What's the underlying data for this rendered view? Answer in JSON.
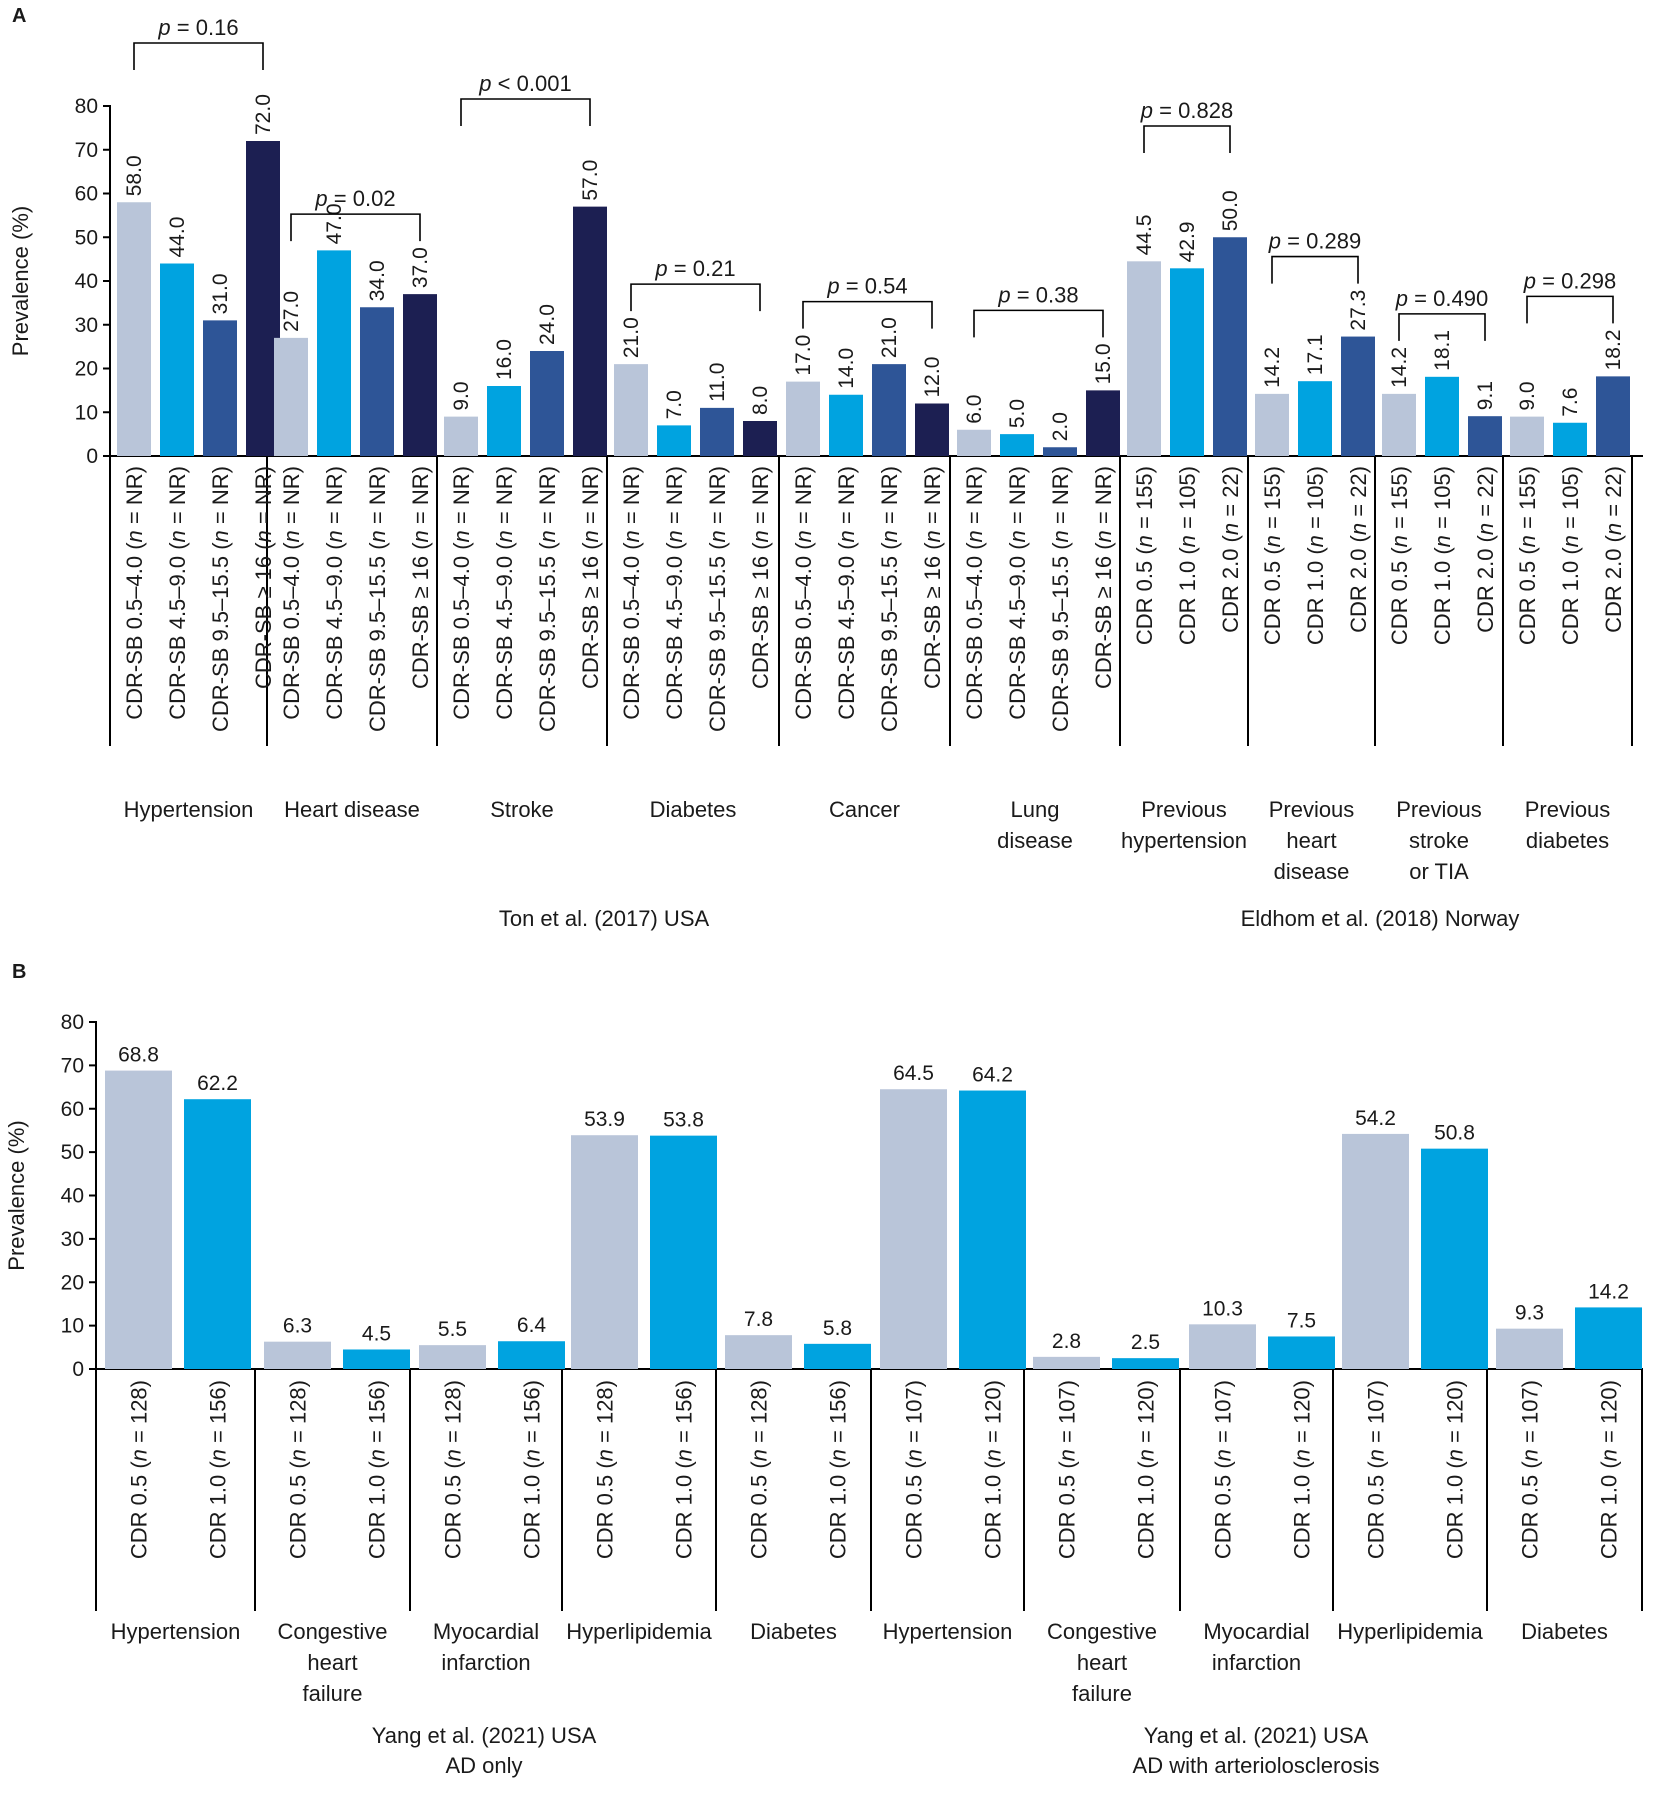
{
  "colors": {
    "s1": "#b9c5d9",
    "s2": "#00a3e0",
    "s3": "#2e5597",
    "s4": "#1c1f52"
  },
  "chart_data": [
    {
      "panel": "A",
      "type": "bar",
      "ylabel": "Prevalence (%)",
      "ylim": [
        0,
        80
      ],
      "yticks": [
        0,
        10,
        20,
        30,
        40,
        50,
        60,
        70,
        80
      ],
      "groups": [
        {
          "name": [
            "Hypertension"
          ],
          "study": 0,
          "p": [
            "p",
            " = 0.16"
          ],
          "bars": [
            {
              "label": "CDR-SB 0.5–4.0 (",
              "n": " = NR)",
              "value": 58.0,
              "s": 1
            },
            {
              "label": "CDR-SB 4.5–9.0 (",
              "n": " = NR)",
              "value": 44.0,
              "s": 2
            },
            {
              "label": "CDR-SB 9.5–15.5 (",
              "n": " = NR)",
              "value": 31.0,
              "s": 3
            },
            {
              "label": "CDR-SB ≥ 16 (",
              "n": " = NR)",
              "value": 72.0,
              "s": 4
            }
          ]
        },
        {
          "name": [
            "Heart disease"
          ],
          "study": 0,
          "p": [
            "p",
            " = 0.02"
          ],
          "bars": [
            {
              "label": "CDR-SB 0.5–4.0 (",
              "n": " = NR)",
              "value": 27.0,
              "s": 1
            },
            {
              "label": "CDR-SB 4.5–9.0 (",
              "n": " = NR)",
              "value": 47.0,
              "s": 2
            },
            {
              "label": "CDR-SB 9.5–15.5 (",
              "n": " = NR)",
              "value": 34.0,
              "s": 3
            },
            {
              "label": "CDR-SB ≥ 16 (",
              "n": " = NR)",
              "value": 37.0,
              "s": 4
            }
          ]
        },
        {
          "name": [
            "Stroke"
          ],
          "study": 0,
          "p": [
            "p",
            " < 0.001"
          ],
          "bars": [
            {
              "label": "CDR-SB 0.5–4.0 (",
              "n": " = NR)",
              "value": 9.0,
              "s": 1
            },
            {
              "label": "CDR-SB 4.5–9.0 (",
              "n": " = NR)",
              "value": 16.0,
              "s": 2
            },
            {
              "label": "CDR-SB 9.5–15.5 (",
              "n": " = NR)",
              "value": 24.0,
              "s": 3
            },
            {
              "label": "CDR-SB ≥ 16 (",
              "n": " = NR)",
              "value": 57.0,
              "s": 4
            }
          ]
        },
        {
          "name": [
            "Diabetes"
          ],
          "study": 0,
          "p": [
            "p",
            " = 0.21"
          ],
          "bars": [
            {
              "label": "CDR-SB 0.5–4.0 (",
              "n": " = NR)",
              "value": 21.0,
              "s": 1
            },
            {
              "label": "CDR-SB 4.5–9.0 (",
              "n": " = NR)",
              "value": 7.0,
              "s": 2
            },
            {
              "label": "CDR-SB 9.5–15.5 (",
              "n": " = NR)",
              "value": 11.0,
              "s": 3
            },
            {
              "label": "CDR-SB ≥ 16 (",
              "n": " = NR)",
              "value": 8.0,
              "s": 4
            }
          ]
        },
        {
          "name": [
            "Cancer"
          ],
          "study": 0,
          "p": [
            "p",
            " = 0.54"
          ],
          "bars": [
            {
              "label": "CDR-SB 0.5–4.0 (",
              "n": " = NR)",
              "value": 17.0,
              "s": 1
            },
            {
              "label": "CDR-SB 4.5–9.0 (",
              "n": " = NR)",
              "value": 14.0,
              "s": 2
            },
            {
              "label": "CDR-SB 9.5–15.5 (",
              "n": " = NR)",
              "value": 21.0,
              "s": 3
            },
            {
              "label": "CDR-SB ≥ 16 (",
              "n": " = NR)",
              "value": 12.0,
              "s": 4
            }
          ]
        },
        {
          "name": [
            "Lung",
            "disease"
          ],
          "study": 0,
          "p": [
            "p",
            " = 0.38"
          ],
          "bars": [
            {
              "label": "CDR-SB 0.5–4.0 (",
              "n": " = NR)",
              "value": 6.0,
              "s": 1
            },
            {
              "label": "CDR-SB 4.5–9.0 (",
              "n": " = NR)",
              "value": 5.0,
              "s": 2
            },
            {
              "label": "CDR-SB 9.5–15.5 (",
              "n": " = NR)",
              "value": 2.0,
              "s": 3
            },
            {
              "label": "CDR-SB ≥ 16 (",
              "n": " = NR)",
              "value": 15.0,
              "s": 4
            }
          ]
        },
        {
          "name": [
            "Previous",
            "hypertension"
          ],
          "study": 1,
          "p": [
            "p",
            " = 0.828"
          ],
          "bars": [
            {
              "label": "CDR 0.5 (",
              "n": " = 155)",
              "value": 44.5,
              "s": 1
            },
            {
              "label": "CDR 1.0 (",
              "n": " = 105)",
              "value": 42.9,
              "s": 2
            },
            {
              "label": "CDR 2.0 (",
              "n": " = 22)",
              "value": 50.0,
              "s": 3
            }
          ]
        },
        {
          "name": [
            "Previous",
            "heart",
            "disease"
          ],
          "study": 1,
          "p": [
            "p",
            " = 0.289"
          ],
          "bars": [
            {
              "label": "CDR 0.5 (",
              "n": " = 155)",
              "value": 14.2,
              "s": 1
            },
            {
              "label": "CDR 1.0 (",
              "n": " = 105)",
              "value": 17.1,
              "s": 2
            },
            {
              "label": "CDR 2.0 (",
              "n": " = 22)",
              "value": 27.3,
              "s": 3
            }
          ]
        },
        {
          "name": [
            "Previous",
            "stroke",
            "or TIA"
          ],
          "study": 1,
          "p": [
            "p",
            " = 0.490"
          ],
          "bars": [
            {
              "label": "CDR 0.5 (",
              "n": " = 155)",
              "value": 14.2,
              "s": 1
            },
            {
              "label": "CDR 1.0 (",
              "n": " = 105)",
              "value": 18.1,
              "s": 2
            },
            {
              "label": "CDR 2.0 (",
              "n": " = 22)",
              "value": 9.1,
              "s": 3
            }
          ]
        },
        {
          "name": [
            "Previous",
            "diabetes"
          ],
          "study": 1,
          "p": [
            "p",
            " = 0.298"
          ],
          "bars": [
            {
              "label": "CDR 0.5 (",
              "n": " = 155)",
              "value": 9.0,
              "s": 1
            },
            {
              "label": "CDR 1.0 (",
              "n": " = 105)",
              "value": 7.6,
              "s": 2
            },
            {
              "label": "CDR 2.0 (",
              "n": " = 22)",
              "value": 18.2,
              "s": 3
            }
          ]
        }
      ],
      "studies": [
        {
          "lines": [
            "Ton et al. (2017) USA"
          ]
        },
        {
          "lines": [
            "Eldhom et al. (2018) Norway"
          ]
        }
      ]
    },
    {
      "panel": "B",
      "type": "bar",
      "ylabel": "Prevalence (%)",
      "ylim": [
        0,
        80
      ],
      "yticks": [
        0,
        10,
        20,
        30,
        40,
        50,
        60,
        70,
        80
      ],
      "groups": [
        {
          "name": [
            "Hypertension"
          ],
          "study": 0,
          "bars": [
            {
              "label": "CDR 0.5 (",
              "n": " = 128)",
              "value": 68.8,
              "s": 1
            },
            {
              "label": "CDR 1.0 (",
              "n": " = 156)",
              "value": 62.2,
              "s": 2
            }
          ]
        },
        {
          "name": [
            "Congestive",
            "heart",
            "failure"
          ],
          "study": 0,
          "bars": [
            {
              "label": "CDR 0.5 (",
              "n": " = 128)",
              "value": 6.3,
              "s": 1
            },
            {
              "label": "CDR 1.0 (",
              "n": " = 156)",
              "value": 4.5,
              "s": 2
            }
          ]
        },
        {
          "name": [
            "Myocardial",
            "infarction"
          ],
          "study": 0,
          "bars": [
            {
              "label": "CDR 0.5 (",
              "n": " = 128)",
              "value": 5.5,
              "s": 1
            },
            {
              "label": "CDR 1.0 (",
              "n": " = 156)",
              "value": 6.4,
              "s": 2
            }
          ]
        },
        {
          "name": [
            "Hyperlipidemia"
          ],
          "study": 0,
          "bars": [
            {
              "label": "CDR 0.5 (",
              "n": " = 128)",
              "value": 53.9,
              "s": 1
            },
            {
              "label": "CDR 1.0 (",
              "n": " = 156)",
              "value": 53.8,
              "s": 2
            }
          ]
        },
        {
          "name": [
            "Diabetes"
          ],
          "study": 0,
          "bars": [
            {
              "label": "CDR 0.5 (",
              "n": " = 128)",
              "value": 7.8,
              "s": 1
            },
            {
              "label": "CDR 1.0 (",
              "n": " = 156)",
              "value": 5.8,
              "s": 2
            }
          ]
        },
        {
          "name": [
            "Hypertension"
          ],
          "study": 1,
          "bars": [
            {
              "label": "CDR 0.5 (",
              "n": " = 107)",
              "value": 64.5,
              "s": 1
            },
            {
              "label": "CDR 1.0 (",
              "n": " = 120)",
              "value": 64.2,
              "s": 2
            }
          ]
        },
        {
          "name": [
            "Congestive",
            "heart",
            "failure"
          ],
          "study": 1,
          "bars": [
            {
              "label": "CDR 0.5 (",
              "n": " = 107)",
              "value": 2.8,
              "s": 1
            },
            {
              "label": "CDR 1.0 (",
              "n": " = 120)",
              "value": 2.5,
              "s": 2
            }
          ]
        },
        {
          "name": [
            "Myocardial",
            "infarction"
          ],
          "study": 1,
          "bars": [
            {
              "label": "CDR 0.5 (",
              "n": " = 107)",
              "value": 10.3,
              "s": 1
            },
            {
              "label": "CDR 1.0 (",
              "n": " = 120)",
              "value": 7.5,
              "s": 2
            }
          ]
        },
        {
          "name": [
            "Hyperlipidemia"
          ],
          "study": 1,
          "bars": [
            {
              "label": "CDR 0.5 (",
              "n": " = 107)",
              "value": 54.2,
              "s": 1
            },
            {
              "label": "CDR 1.0 (",
              "n": " = 120)",
              "value": 50.8,
              "s": 2
            }
          ]
        },
        {
          "name": [
            "Diabetes"
          ],
          "study": 1,
          "bars": [
            {
              "label": "CDR 0.5 (",
              "n": " = 107)",
              "value": 9.3,
              "s": 1
            },
            {
              "label": "CDR 1.0 (",
              "n": " = 120)",
              "value": 14.2,
              "s": 2
            }
          ]
        }
      ],
      "studies": [
        {
          "lines": [
            "Yang et al. (2021) USA",
            "AD only"
          ]
        },
        {
          "lines": [
            "Yang et al. (2021) USA",
            "AD with arteriolosclerosis"
          ]
        }
      ]
    }
  ]
}
